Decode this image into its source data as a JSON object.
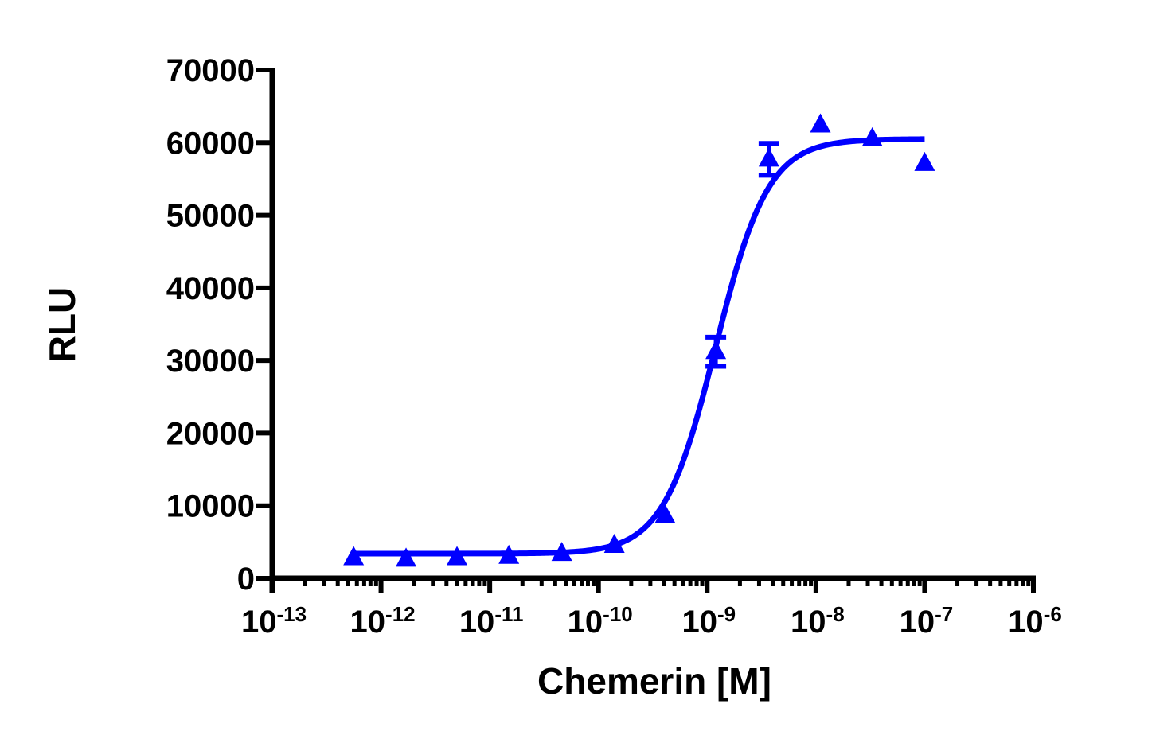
{
  "chart_data": {
    "type": "scatter",
    "title": "",
    "xlabel": "Chemerin [M]",
    "ylabel": "RLU",
    "xscale": "log",
    "xlim": [
      1e-13,
      1e-06
    ],
    "ylim": [
      0,
      70000
    ],
    "x_ticks": [
      -13,
      -12,
      -11,
      -10,
      -9,
      -8,
      -7,
      -6
    ],
    "x_tick_labels": [
      "10^-13",
      "10^-12",
      "10^-11",
      "10^-10",
      "10^-9",
      "10^-8",
      "10^-7",
      "10^-6"
    ],
    "y_ticks": [
      0,
      10000,
      20000,
      30000,
      40000,
      50000,
      60000,
      70000
    ],
    "y_tick_labels": [
      "0",
      "10000",
      "20000",
      "30000",
      "40000",
      "50000",
      "60000",
      "70000"
    ],
    "grid": false,
    "legend": null,
    "series": [
      {
        "name": "Chemerin",
        "marker": "triangle",
        "color": "#0000ff",
        "x": [
          5.6e-13,
          1.7e-12,
          5e-12,
          1.5e-11,
          4.6e-11,
          1.4e-10,
          4.1e-10,
          1.2e-09,
          3.7e-09,
          1.1e-08,
          3.3e-08,
          1e-07
        ],
        "y": [
          2800,
          2600,
          2800,
          3000,
          3400,
          4500,
          8600,
          31200,
          57700,
          62400,
          60500,
          57100
        ],
        "error": [
          0,
          0,
          0,
          0,
          0,
          0,
          0,
          2000,
          2200,
          0,
          0,
          0
        ]
      }
    ],
    "fit": {
      "model": "sigmoidal dose-response",
      "bottom": 3400,
      "top": 60500,
      "ec50": 1.2e-09,
      "hill_slope": 1.8,
      "x_range": [
        5.6e-13,
        1e-07
      ],
      "color": "#0000ff"
    }
  },
  "labels": {
    "xlabel": "Chemerin [M]",
    "ylabel": "RLU",
    "y_ticks": [
      "0",
      "10000",
      "20000",
      "30000",
      "40000",
      "50000",
      "60000",
      "70000"
    ],
    "x_ticks": [
      {
        "base": "10",
        "exp": "-13"
      },
      {
        "base": "10",
        "exp": "-12"
      },
      {
        "base": "10",
        "exp": "-11"
      },
      {
        "base": "10",
        "exp": "-10"
      },
      {
        "base": "10",
        "exp": "-9"
      },
      {
        "base": "10",
        "exp": "-8"
      },
      {
        "base": "10",
        "exp": "-7"
      },
      {
        "base": "10",
        "exp": "-6"
      }
    ]
  }
}
